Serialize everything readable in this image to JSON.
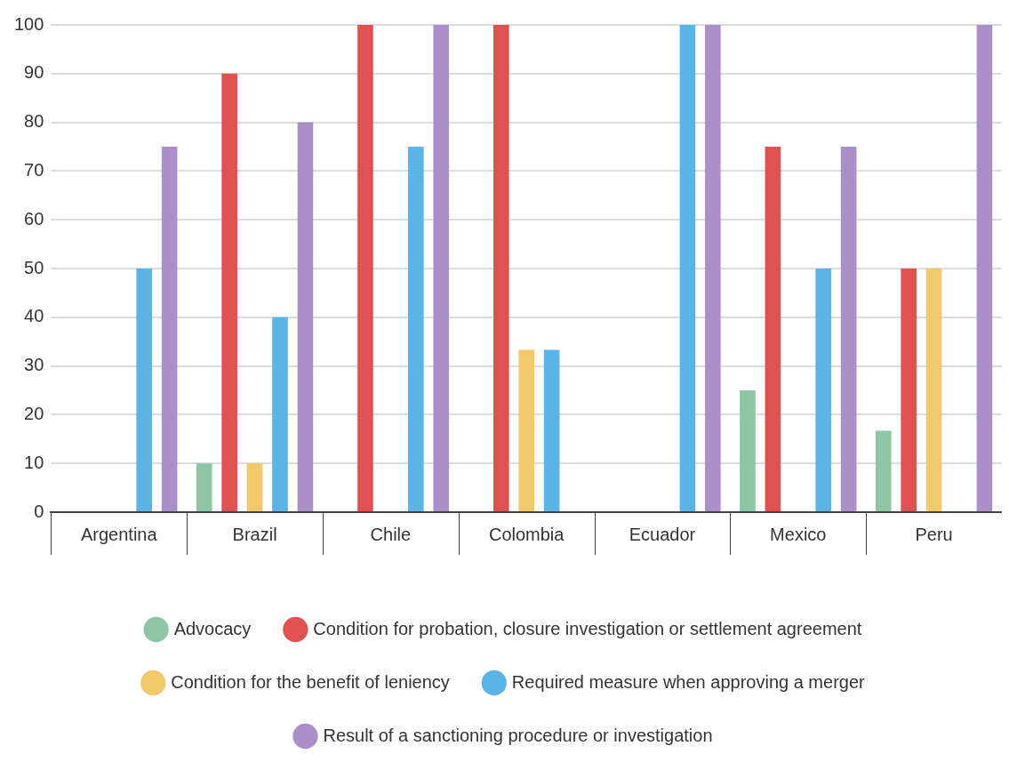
{
  "chart_data": {
    "type": "bar",
    "categories": [
      "Argentina",
      "Brazil",
      "Chile",
      "Colombia",
      "Ecuador",
      "Mexico",
      "Peru"
    ],
    "series": [
      {
        "name": "Advocacy",
        "color": "#8dc5a5",
        "values": [
          0,
          10,
          0,
          0,
          0,
          25,
          16.7
        ]
      },
      {
        "name": "Condition for probation, closure investigation or settlement agreement",
        "color": "#e05252",
        "values": [
          0,
          90,
          100,
          100,
          0,
          75,
          50
        ]
      },
      {
        "name": "Condition for the benefit of leniency",
        "color": "#f2c96a",
        "values": [
          0,
          10,
          0,
          33.3,
          0,
          0,
          50
        ]
      },
      {
        "name": "Required measure when approving a merger",
        "color": "#5ab4e5",
        "values": [
          50,
          40,
          75,
          33.3,
          100,
          50,
          0
        ]
      },
      {
        "name": "Result of a sanctioning procedure or investigation",
        "color": "#ab8fc9",
        "values": [
          75,
          80,
          100,
          0,
          100,
          75,
          100
        ]
      }
    ],
    "ylim": [
      0,
      100
    ],
    "yticks": [
      0,
      10,
      20,
      30,
      40,
      50,
      60,
      70,
      80,
      90,
      100
    ],
    "grid": "y",
    "legend": "bottom"
  }
}
